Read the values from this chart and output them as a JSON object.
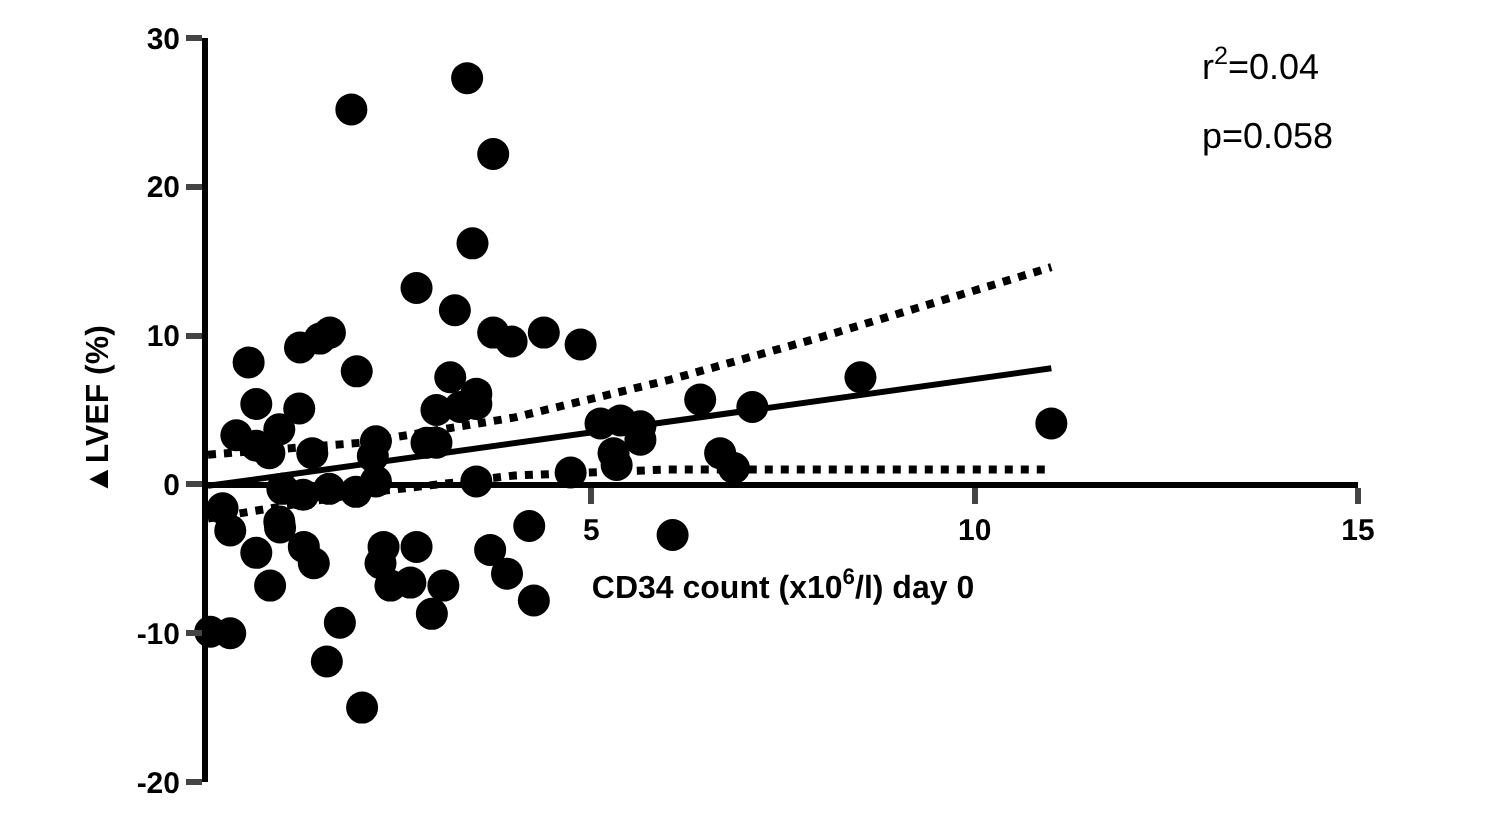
{
  "chart_data": {
    "type": "scatter",
    "xlabel": "CD34 count (x10$^{6}$/l) day 0",
    "ylabel": "▲LVEF (%)",
    "annotations": [
      "r$^{2}$=0.04",
      "p=0.058"
    ],
    "xlim": [
      0,
      15
    ],
    "ylim": [
      -20,
      30
    ],
    "xticks": [
      5,
      10,
      15
    ],
    "yticks": [
      -20,
      -10,
      0,
      10,
      20,
      30
    ],
    "marker": "circle",
    "series": [
      {
        "color": "#000000",
        "x": [
          1.87,
          3.38,
          3.72,
          3.45,
          2.72,
          3.22,
          3.72,
          3.96,
          4.38,
          0.53,
          1.2,
          1.46,
          1.59,
          1.94,
          3.16,
          3.5,
          0.63,
          1.19,
          0.37,
          0.63,
          0.93,
          0.8,
          1.36,
          2.19,
          2.15,
          2.85,
          0.19,
          0.97,
          1.24,
          1.58,
          1.93,
          0.93,
          2.19,
          2.98,
          3.29,
          3.5,
          2.98,
          3.5,
          0.29,
          0.94,
          0.63,
          1.25,
          1.38,
          0.81,
          2.29,
          2.72,
          2.25,
          2.38,
          2.64,
          3.07,
          2.92,
          3.68,
          3.9,
          4.19,
          4.25,
          0.03,
          0.29,
          1.72,
          1.55,
          2.01,
          6.06,
          4.86,
          5.12,
          5.38,
          5.64,
          5.29,
          5.33,
          4.73,
          5.64,
          6.42,
          7.1,
          8.51,
          11.0,
          6.68,
          6.86
        ],
        "values": [
          25.2,
          27.3,
          22.2,
          16.2,
          13.2,
          11.7,
          10.2,
          9.6,
          10.2,
          8.2,
          9.2,
          9.8,
          10.2,
          7.6,
          7.2,
          6.1,
          5.4,
          5.1,
          3.3,
          2.6,
          3.7,
          2.1,
          2.1,
          2.9,
          1.9,
          2.8,
          -1.6,
          -0.3,
          -0.7,
          -0.3,
          -0.5,
          -2.5,
          0.2,
          5.0,
          5.2,
          5.4,
          2.8,
          0.2,
          -3.1,
          -2.9,
          -4.6,
          -4.2,
          -5.3,
          -6.8,
          -4.2,
          -4.2,
          -5.3,
          -6.8,
          -6.6,
          -6.8,
          -8.7,
          -4.4,
          -6.0,
          -2.8,
          -7.8,
          -9.9,
          -10.0,
          -9.3,
          -11.9,
          -15.0,
          -3.4,
          9.4,
          4.1,
          4.3,
          3.9,
          2.1,
          1.3,
          0.8,
          3.0,
          5.7,
          5.2,
          7.2,
          4.1,
          2.1,
          1.1
        ]
      },
      {
        "type": "line",
        "marker": "none",
        "color": "#000000",
        "line_style": "solid",
        "x": [
          0,
          11
        ],
        "values": [
          -0.1,
          7.8
        ]
      },
      {
        "type": "line",
        "marker": "none",
        "color": "#000000",
        "line_style": "dotted",
        "x": [
          0,
          2,
          4,
          6,
          8,
          11
        ],
        "values": [
          2.0,
          2.8,
          4.5,
          7.0,
          9.9,
          14.6
        ]
      },
      {
        "type": "line",
        "marker": "none",
        "color": "#000000",
        "line_style": "dotted",
        "x": [
          0,
          2,
          4,
          6,
          8,
          11
        ],
        "values": [
          -2.3,
          -0.6,
          0.6,
          1.0,
          1.0,
          1.0
        ]
      }
    ]
  }
}
